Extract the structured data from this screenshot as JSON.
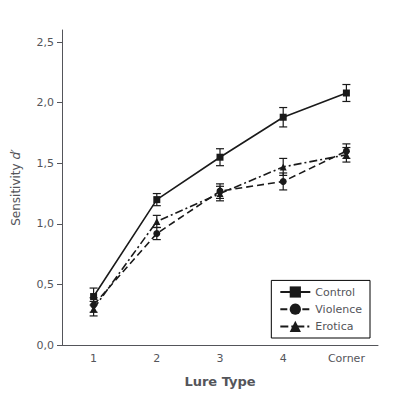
{
  "chart_data": {
    "type": "line",
    "xlabel": "Lure Type",
    "ylabel": "Sensitivity d′",
    "categories": [
      "1",
      "2",
      "3",
      "4",
      "Corner"
    ],
    "series": [
      {
        "name": "Control",
        "color": "#1a1a1a",
        "marker": "square",
        "line_style": "solid",
        "values": [
          0.4,
          1.2,
          1.55,
          1.88,
          2.08
        ],
        "errors": [
          0.07,
          0.05,
          0.07,
          0.08,
          0.07
        ]
      },
      {
        "name": "Violence",
        "color": "#1a1a1a",
        "marker": "circle",
        "line_style": "dashed",
        "values": [
          0.33,
          0.92,
          1.27,
          1.35,
          1.6
        ],
        "errors": [
          0.06,
          0.05,
          0.06,
          0.07,
          0.06
        ]
      },
      {
        "name": "Erotica",
        "color": "#1a1a1a",
        "marker": "triangle",
        "line_style": "dashdot",
        "values": [
          0.3,
          1.02,
          1.25,
          1.47,
          1.57
        ],
        "errors": [
          0.06,
          0.05,
          0.06,
          0.07,
          0.06
        ]
      }
    ],
    "ylim": [
      0.0,
      2.6
    ],
    "yticks": [
      {
        "value": 0.0,
        "label": "0,0"
      },
      {
        "value": 0.5,
        "label": "0,5"
      },
      {
        "value": 1.0,
        "label": "1,0"
      },
      {
        "value": 1.5,
        "label": "1,5"
      },
      {
        "value": 2.0,
        "label": "2,0"
      },
      {
        "value": 2.5,
        "label": "2,5"
      }
    ],
    "grid": false,
    "legend": "lower right"
  }
}
